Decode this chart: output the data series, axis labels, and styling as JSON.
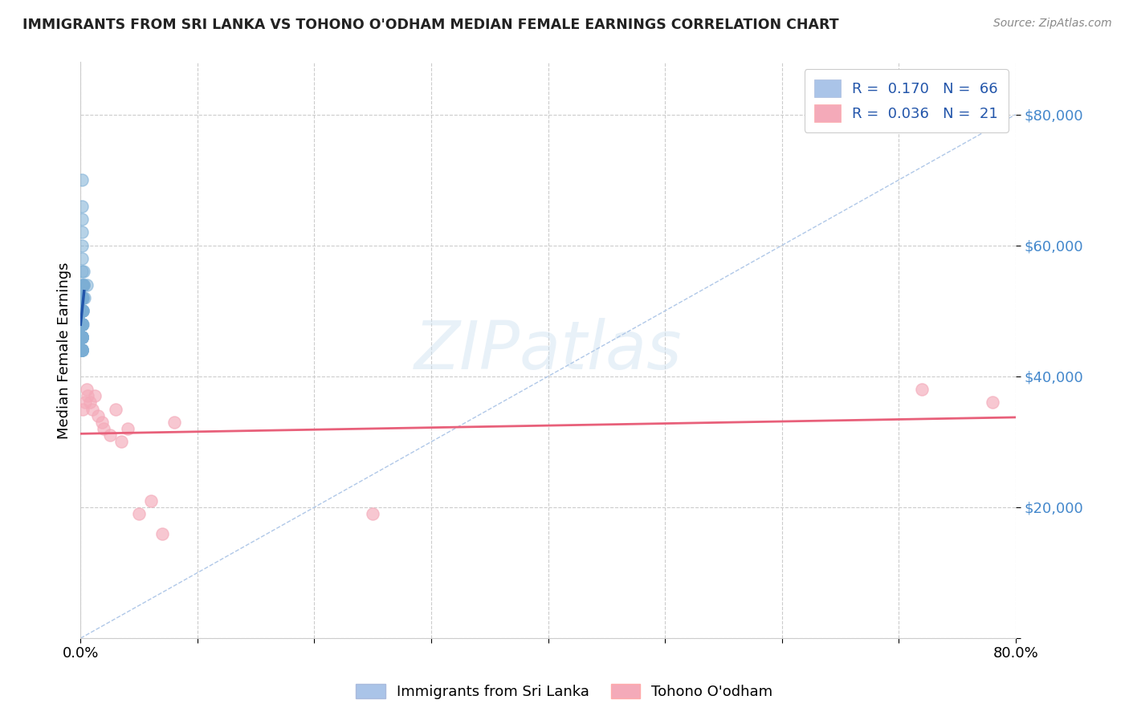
{
  "title": "IMMIGRANTS FROM SRI LANKA VS TOHONO O'ODHAM MEDIAN FEMALE EARNINGS CORRELATION CHART",
  "source": "Source: ZipAtlas.com",
  "ylabel": "Median Female Earnings",
  "xlim": [
    0.0,
    0.8
  ],
  "ylim": [
    0,
    88000
  ],
  "yticks": [
    0,
    20000,
    40000,
    60000,
    80000
  ],
  "xticks": [
    0.0,
    0.1,
    0.2,
    0.3,
    0.4,
    0.5,
    0.6,
    0.7,
    0.8
  ],
  "background_color": "#ffffff",
  "grid_color": "#cccccc",
  "watermark_text": "ZIPatlas",
  "legend_R1": "R =  0.170",
  "legend_N1": "N =  66",
  "legend_R2": "R =  0.036",
  "legend_N2": "N =  21",
  "legend_color1": "#aac4e8",
  "legend_color2": "#f4aab9",
  "sri_lanka_color": "#7aadd4",
  "tohono_color": "#f4aab9",
  "sri_lanka_line_color": "#2255aa",
  "tohono_line_color": "#e8607a",
  "diagonal_color": "#b0c8e8",
  "sri_lanka_x": [
    0.0008,
    0.001,
    0.0012,
    0.0008,
    0.001,
    0.0008,
    0.001,
    0.0012,
    0.0014,
    0.0008,
    0.0009,
    0.001,
    0.0011,
    0.0008,
    0.0009,
    0.001,
    0.0012,
    0.0008,
    0.0009,
    0.001,
    0.0011,
    0.0012,
    0.0013,
    0.0008,
    0.0009,
    0.001,
    0.0011,
    0.0012,
    0.0013,
    0.0014,
    0.0008,
    0.0009,
    0.001,
    0.0008,
    0.0009,
    0.001,
    0.0011,
    0.0008,
    0.001,
    0.0012,
    0.0014,
    0.0016,
    0.0008,
    0.001,
    0.0014,
    0.0018,
    0.002,
    0.0022,
    0.0024,
    0.001,
    0.0012,
    0.0014,
    0.0008,
    0.001,
    0.002,
    0.003,
    0.005,
    0.0008,
    0.0012,
    0.0016,
    0.0008,
    0.001,
    0.0012,
    0.0016,
    0.002,
    0.0025
  ],
  "sri_lanka_y": [
    52000,
    48000,
    50000,
    66000,
    70000,
    62000,
    58000,
    64000,
    60000,
    54000,
    56000,
    52000,
    48000,
    50000,
    46000,
    44000,
    48000,
    50000,
    46000,
    44000,
    48000,
    46000,
    50000,
    52000,
    48000,
    50000,
    46000,
    48000,
    50000,
    52000,
    44000,
    46000,
    48000,
    44000,
    46000,
    48000,
    50000,
    46000,
    48000,
    50000,
    52000,
    54000,
    44000,
    46000,
    48000,
    50000,
    52000,
    54000,
    56000,
    44000,
    46000,
    48000,
    46000,
    48000,
    50000,
    52000,
    54000,
    44000,
    46000,
    48000,
    44000,
    46000,
    48000,
    50000,
    52000,
    54000
  ],
  "tohono_x": [
    0.002,
    0.004,
    0.005,
    0.006,
    0.008,
    0.01,
    0.012,
    0.015,
    0.018,
    0.02,
    0.025,
    0.03,
    0.035,
    0.04,
    0.05,
    0.06,
    0.07,
    0.08,
    0.72,
    0.78,
    0.25
  ],
  "tohono_y": [
    35000,
    36000,
    38000,
    37000,
    36000,
    35000,
    37000,
    34000,
    33000,
    32000,
    31000,
    35000,
    30000,
    32000,
    19000,
    21000,
    16000,
    33000,
    38000,
    36000,
    19000
  ]
}
